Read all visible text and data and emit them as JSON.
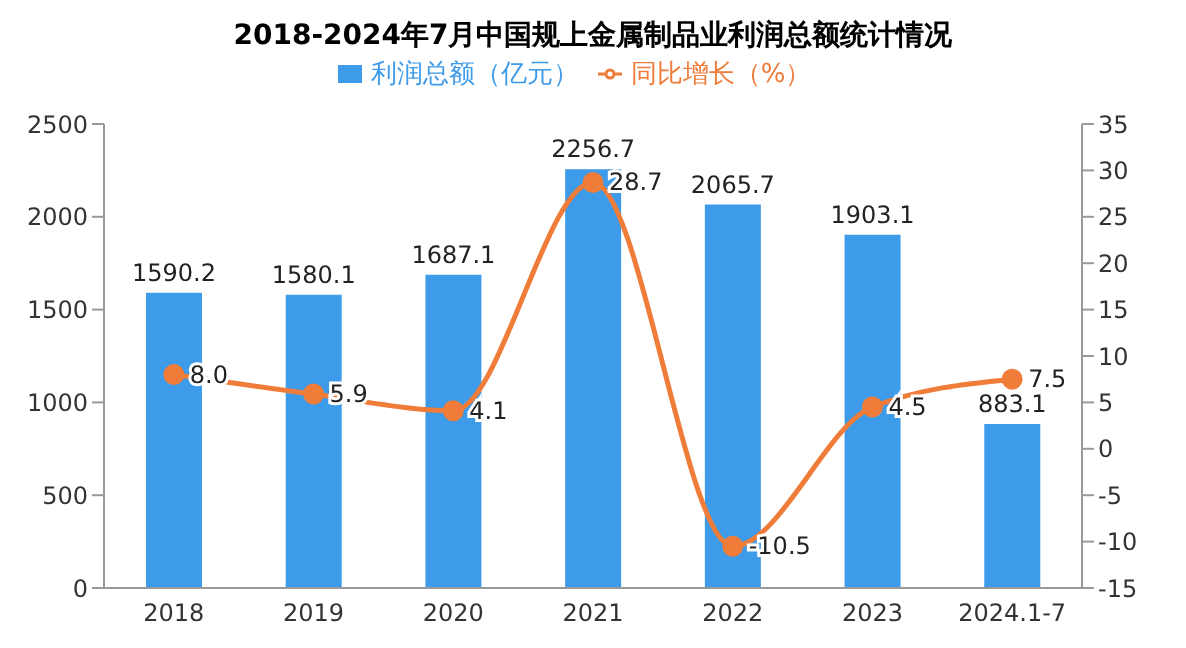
{
  "chart_data": {
    "type": "bar",
    "title": "2018-2024年7月中国规上金属制品业利润总额统计情况",
    "categories": [
      "2018",
      "2019",
      "2020",
      "2021",
      "2022",
      "2023",
      "2024.1-7"
    ],
    "series": [
      {
        "name": "利润总额（亿元）",
        "color": "#3d9be9",
        "values": [
          1590.2,
          1580.1,
          1687.1,
          2256.7,
          2065.7,
          1903.1,
          883.1
        ],
        "value_labels": [
          "1590.2",
          "1580.1",
          "1687.1",
          "2256.7",
          "2065.7",
          "1903.1",
          "883.1"
        ]
      },
      {
        "name": "同比增长（%）",
        "type": "line",
        "axis": "y2",
        "color": "#f07c3a",
        "values": [
          8.0,
          5.9,
          4.1,
          28.7,
          -10.5,
          4.5,
          7.5
        ],
        "value_labels": [
          "8.0",
          "5.9",
          "4.1",
          "28.7",
          "-10.5",
          "4.5",
          "7.5"
        ]
      }
    ],
    "ylim": [
      0,
      2500
    ],
    "yticks": [
      0,
      500,
      1000,
      1500,
      2000,
      2500
    ],
    "y2lim": [
      -15,
      35
    ],
    "y2ticks": [
      -15,
      -10,
      -5,
      0,
      5,
      10,
      15,
      20,
      25,
      30,
      35
    ],
    "legend": "top",
    "marker": "circle",
    "grid": false
  }
}
